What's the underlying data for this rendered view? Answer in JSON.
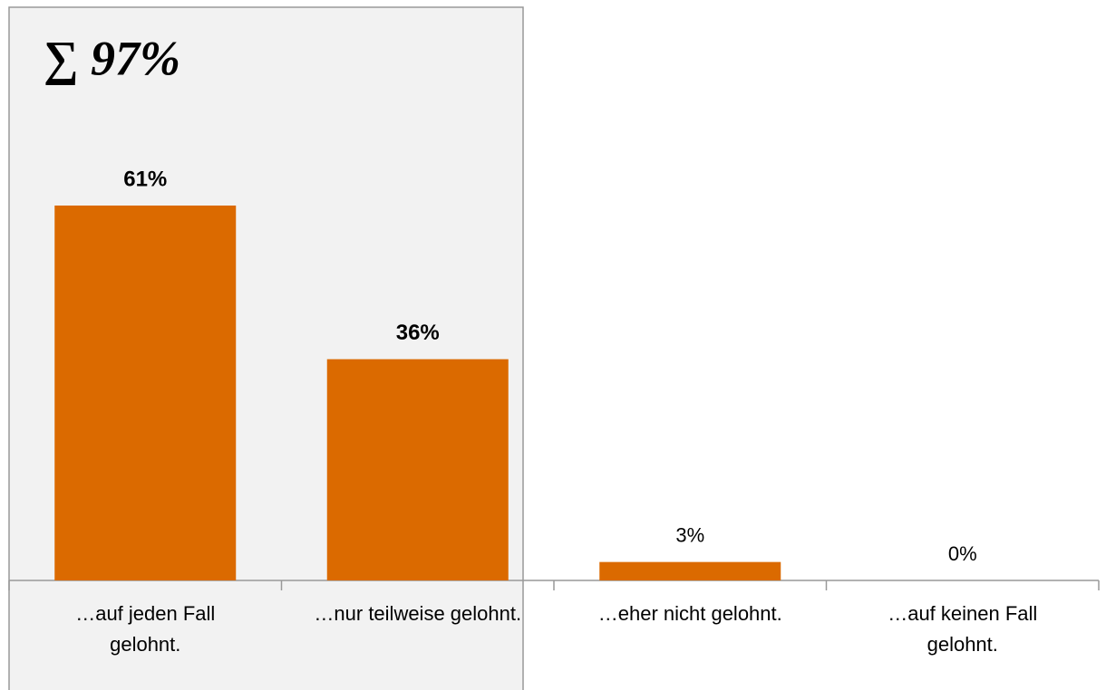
{
  "chart_data": {
    "type": "bar",
    "annotation": "∑ 97%",
    "categories": [
      "…auf jeden Fall gelohnt.",
      "…nur teilweise gelohnt.",
      "…eher nicht gelohnt.",
      "…auf keinen Fall gelohnt."
    ],
    "values": [
      61,
      36,
      3,
      0
    ],
    "value_labels": [
      "61%",
      "36%",
      "3%",
      "0%"
    ],
    "color": "#db6a00"
  }
}
